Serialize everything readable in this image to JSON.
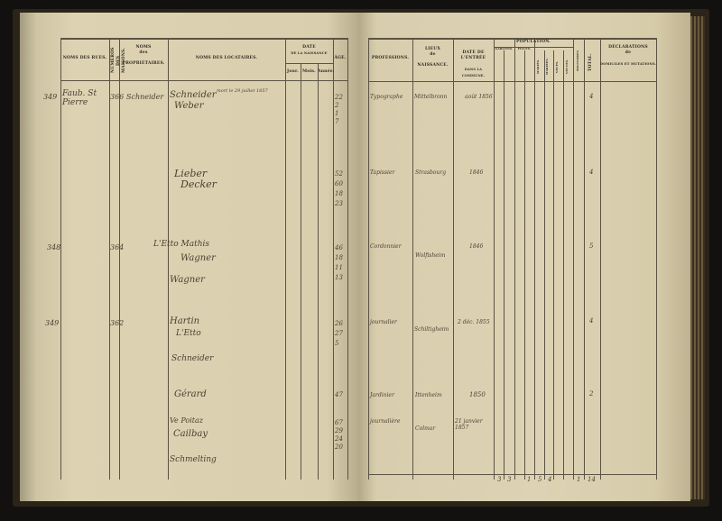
{
  "left_page": {
    "headers": {
      "street": "NOMS DES RUES.",
      "house_no": "NUMÉROS DES MAISONS.",
      "owners_1": "NOMS",
      "owners_2": "des",
      "owners_3": "PROPRIÉTAIRES.",
      "tenants": "NOMS DES LOCATAIRES.",
      "birth": "DATE",
      "birth_sub": "DE LA NAISSANCE",
      "day": "Jour.",
      "month": "Mois.",
      "year": "Année.",
      "age": "ÂGE."
    },
    "entries": [
      {
        "margin": "349",
        "street": "Faub. St Pierre",
        "house": "366",
        "owner": "Schneider",
        "names": [
          "Schneider",
          "Weber",
          "",
          ""
        ],
        "note": "mort le 29 juillet 1857",
        "ages": [
          "22",
          "2",
          "1",
          "7"
        ]
      },
      {
        "names": [
          "Lieber",
          "Decker",
          "",
          ""
        ],
        "ages": [
          "52",
          "60",
          "18",
          "23"
        ]
      },
      {
        "margin": "348",
        "house": "364",
        "owner": "L'Etto Mathis",
        "names": [
          "Wagner",
          "Wagner"
        ],
        "ages": [
          "46",
          "18",
          "11",
          "13"
        ]
      },
      {
        "margin": "349",
        "house": "362",
        "names": [
          "Hartin",
          "L'Etto",
          "Schneider"
        ],
        "ages": [
          "26",
          "27",
          "5"
        ]
      },
      {
        "names": [
          "Gérard"
        ],
        "ages": [
          "47"
        ]
      },
      {
        "names": [
          "Ve Poitaz",
          "Cailbay",
          "Schmelting"
        ],
        "ages": [
          "67",
          "29",
          "24",
          "20"
        ]
      }
    ]
  },
  "right_page": {
    "headers": {
      "professions": "PROFESSIONS.",
      "birthplace_1": "LIEUX",
      "birthplace_2": "de",
      "birthplace_3": "NAISSANCE.",
      "entry_1": "DATE DE L'ENTRÉE",
      "entry_2": "DANS LA COMMUNE.",
      "population": "POPULATION.",
      "boys": "GARÇONS.",
      "girls": "FILLES.",
      "married_m": "MARIÉS.",
      "married_f": "MARIÉES.",
      "widowers": "VEUFS.",
      "widows": "VEUVES.",
      "soldiers": "MILITAIRES",
      "total": "TOTAL.",
      "declarations_1": "DÉCLARATIONS",
      "declarations_2": "de",
      "declarations_3": "DOMICILES ET MUTATIONS."
    },
    "entries": [
      {
        "profession": "Typographe",
        "birthplace": "Mittelbronn",
        "entry": "août 1856",
        "total": "4"
      },
      {
        "profession": "Tapissier",
        "birthplace": "Strasbourg",
        "entry": "1846",
        "total": "4"
      },
      {
        "profession": "Cordonnier",
        "birthplace": "Wolfisheim",
        "entry": "1846",
        "total": "5"
      },
      {
        "profession": "journalier",
        "birthplace": "Schiltigheim",
        "entry": "2 déc. 1855",
        "total": "4"
      },
      {
        "profession": "Jardinier",
        "birthplace": "Ittenheim",
        "entry": "1850",
        "total": "2"
      },
      {
        "profession": "journalière",
        "birthplace": "Colmar",
        "entry": "21 janvier 1857"
      }
    ],
    "totals": [
      "3",
      "3",
      "1",
      "5",
      "4",
      "1",
      "14"
    ]
  }
}
